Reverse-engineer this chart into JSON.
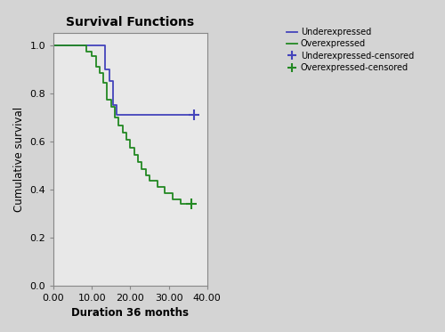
{
  "title": "Survival Functions",
  "xlabel": "Duration 36 months",
  "ylabel": "Cumulative survival",
  "xlim": [
    0.0,
    40.0
  ],
  "ylim": [
    0.0,
    1.05
  ],
  "xticks": [
    0.0,
    10.0,
    20.0,
    30.0,
    40.0
  ],
  "yticks": [
    0.0,
    0.2,
    0.4,
    0.6,
    0.8,
    1.0
  ],
  "fig_facecolor": "#d4d4d4",
  "ax_facecolor": "#e8e8e8",
  "underexpressed_color": "#4444bb",
  "overexpressed_color": "#228822",
  "underexpressed_steps": [
    [
      0.0,
      1.0
    ],
    [
      9.0,
      1.0
    ],
    [
      13.5,
      1.0
    ],
    [
      13.5,
      0.9
    ],
    [
      14.5,
      0.9
    ],
    [
      14.5,
      0.85
    ],
    [
      15.5,
      0.85
    ],
    [
      15.5,
      0.75
    ],
    [
      16.5,
      0.75
    ],
    [
      16.5,
      0.71
    ],
    [
      36.5,
      0.71
    ]
  ],
  "overexpressed_steps": [
    [
      0.0,
      1.0
    ],
    [
      8.5,
      1.0
    ],
    [
      8.5,
      0.975
    ],
    [
      10.0,
      0.975
    ],
    [
      10.0,
      0.955
    ],
    [
      11.0,
      0.955
    ],
    [
      11.0,
      0.91
    ],
    [
      12.0,
      0.91
    ],
    [
      12.0,
      0.885
    ],
    [
      13.0,
      0.885
    ],
    [
      13.0,
      0.845
    ],
    [
      14.0,
      0.845
    ],
    [
      14.0,
      0.775
    ],
    [
      15.0,
      0.775
    ],
    [
      15.0,
      0.745
    ],
    [
      16.0,
      0.745
    ],
    [
      16.0,
      0.7
    ],
    [
      17.0,
      0.7
    ],
    [
      17.0,
      0.665
    ],
    [
      18.0,
      0.665
    ],
    [
      18.0,
      0.635
    ],
    [
      19.0,
      0.635
    ],
    [
      19.0,
      0.605
    ],
    [
      20.0,
      0.605
    ],
    [
      20.0,
      0.575
    ],
    [
      21.0,
      0.575
    ],
    [
      21.0,
      0.545
    ],
    [
      22.0,
      0.545
    ],
    [
      22.0,
      0.515
    ],
    [
      23.0,
      0.515
    ],
    [
      23.0,
      0.485
    ],
    [
      24.0,
      0.485
    ],
    [
      24.0,
      0.46
    ],
    [
      25.0,
      0.46
    ],
    [
      25.0,
      0.435
    ],
    [
      27.0,
      0.435
    ],
    [
      27.0,
      0.41
    ],
    [
      29.0,
      0.41
    ],
    [
      29.0,
      0.385
    ],
    [
      31.0,
      0.385
    ],
    [
      31.0,
      0.36
    ],
    [
      33.0,
      0.36
    ],
    [
      33.0,
      0.34
    ],
    [
      36.0,
      0.34
    ]
  ],
  "underexpressed_censored_x": [
    36.5
  ],
  "underexpressed_censored_y": [
    0.71
  ],
  "overexpressed_censored_x": [
    36.0
  ],
  "overexpressed_censored_y": [
    0.34
  ],
  "legend_labels": [
    "Underexpressed",
    "Overexpressed",
    "Underexpressed-censored",
    "Overexpressed-censored"
  ]
}
